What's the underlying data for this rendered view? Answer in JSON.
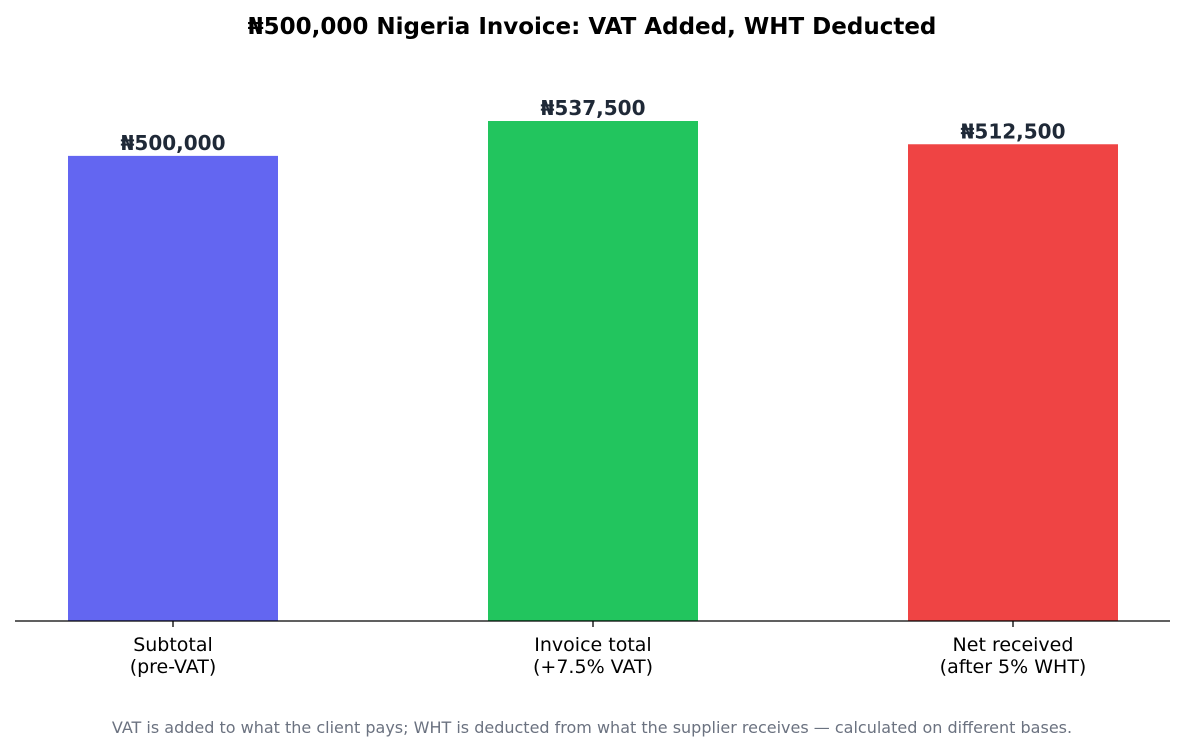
{
  "chart_data": {
    "type": "bar",
    "title": "₦500,000 Nigeria Invoice: VAT Added, WHT Deducted",
    "categories": [
      [
        "Subtotal",
        "(pre-VAT)"
      ],
      [
        "Invoice total",
        "(+7.5% VAT)"
      ],
      [
        "Net received",
        "(after 5% WHT)"
      ]
    ],
    "values": [
      500000,
      537500,
      512500
    ],
    "value_labels": [
      "₦500,000",
      "₦537,500",
      "₦512,500"
    ],
    "colors": [
      "#6366f1",
      "#22c55e",
      "#ef4444"
    ],
    "ylim": [
      0,
      537500
    ],
    "grid": false,
    "footnote": "VAT is added to what the client pays; WHT is deducted from what the supplier receives — calculated on different bases."
  }
}
